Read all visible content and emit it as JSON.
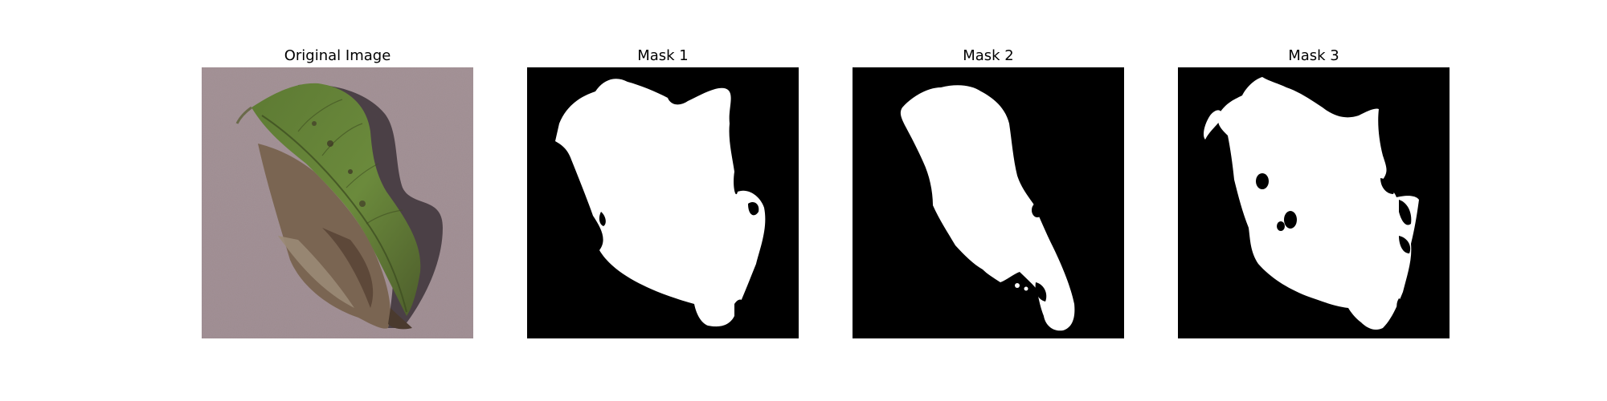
{
  "figure": {
    "panels": [
      {
        "title": "Original Image",
        "kind": "photo",
        "background": "#9f8c91",
        "leaf_color": "#5e7a35"
      },
      {
        "title": "Mask 1",
        "kind": "mask",
        "background": "#000000",
        "foreground": "#ffffff"
      },
      {
        "title": "Mask 2",
        "kind": "mask",
        "background": "#000000",
        "foreground": "#ffffff"
      },
      {
        "title": "Mask 3",
        "kind": "mask",
        "background": "#000000",
        "foreground": "#ffffff"
      }
    ]
  }
}
